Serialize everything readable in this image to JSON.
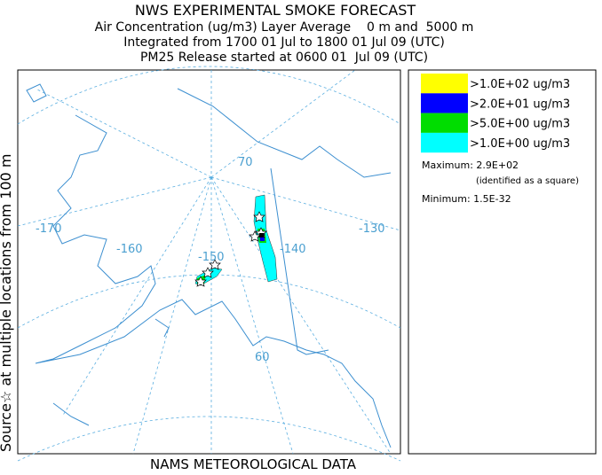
{
  "header": {
    "title": "NWS EXPERIMENTAL SMOKE FORECAST",
    "lines": [
      "Air Concentration (ug/m3) Layer Average    0 m and  5000 m",
      "Integrated from 1700 01 Jul to 1800 01 Jul 09 (UTC)",
      "PM25 Release started at 0600 01  Jul 09 (UTC)"
    ]
  },
  "map": {
    "side_label": "Source☆ at multiple locations from 100 m",
    "bottom_label": "NAMS METEOROLOGICAL DATA",
    "graticule_labels": [
      "-170",
      "-160",
      "-150",
      "-140",
      "-130",
      "70",
      "60"
    ]
  },
  "legend": {
    "items": [
      {
        "label": ">1.0E+02 ug/m3",
        "color": "#ffff00"
      },
      {
        "label": ">2.0E+01 ug/m3",
        "color": "#0000ff"
      },
      {
        "label": ">5.0E+00 ug/m3",
        "color": "#00dd00"
      },
      {
        "label": ">1.0E+00 ug/m3",
        "color": "#00ffff"
      }
    ],
    "maximum": "Maximum: 2.9E+02",
    "maximum_note": "(identified as a square)",
    "minimum": "Minimum: 1.5E-32"
  }
}
